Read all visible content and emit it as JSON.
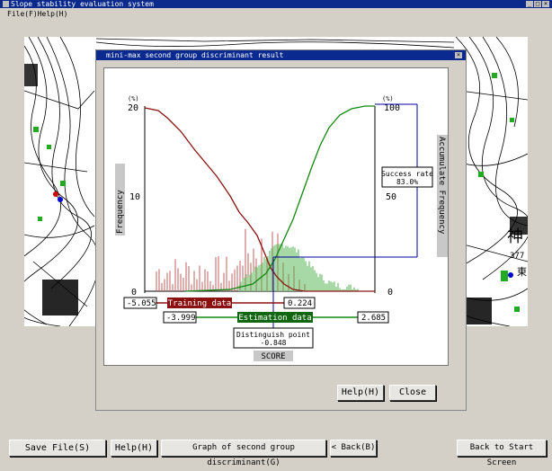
{
  "window": {
    "title": "Slope stability evaluation system"
  },
  "menu": {
    "label": "File(F)Help(H)"
  },
  "dialog": {
    "title": "mini-max second group discriminant result"
  },
  "dialog_buttons": {
    "help": "Help(H)",
    "close": "Close"
  },
  "bottom_buttons": {
    "save": "Save File(S)",
    "help": "Help(H)",
    "graph": "Graph of second group discriminant(G)",
    "back": "< Back(B)",
    "back_start": "Back to Start Screen"
  },
  "map_labels": {
    "kanji1": "神",
    "kanji2": "東",
    "num": "377"
  },
  "chart_data": {
    "type": "line",
    "left_axis": {
      "label": "Frequency",
      "unit": "(%)",
      "ticks": [
        0,
        10,
        20
      ],
      "range": [
        0,
        20
      ]
    },
    "right_axis": {
      "label": "Accumulate Frequency",
      "unit": "(%)",
      "ticks": [
        0,
        50,
        100
      ],
      "range": [
        0,
        100
      ]
    },
    "x_axis": {
      "label": "SCORE"
    },
    "training_data": {
      "label": "Training data",
      "min": "-5.055",
      "max": "0.224"
    },
    "estimation_data": {
      "label": "Estimation data",
      "min": "-3.999",
      "max": "2.685"
    },
    "distinguish_point": {
      "label": "Distinguish point",
      "value": "-0.848"
    },
    "success_rate": {
      "label": "Success rate",
      "value": "83.0%"
    },
    "series": [
      {
        "name": "Training data cumulative",
        "color": "#8b0000"
      },
      {
        "name": "Estimation data cumulative",
        "color": "#118811"
      }
    ]
  }
}
